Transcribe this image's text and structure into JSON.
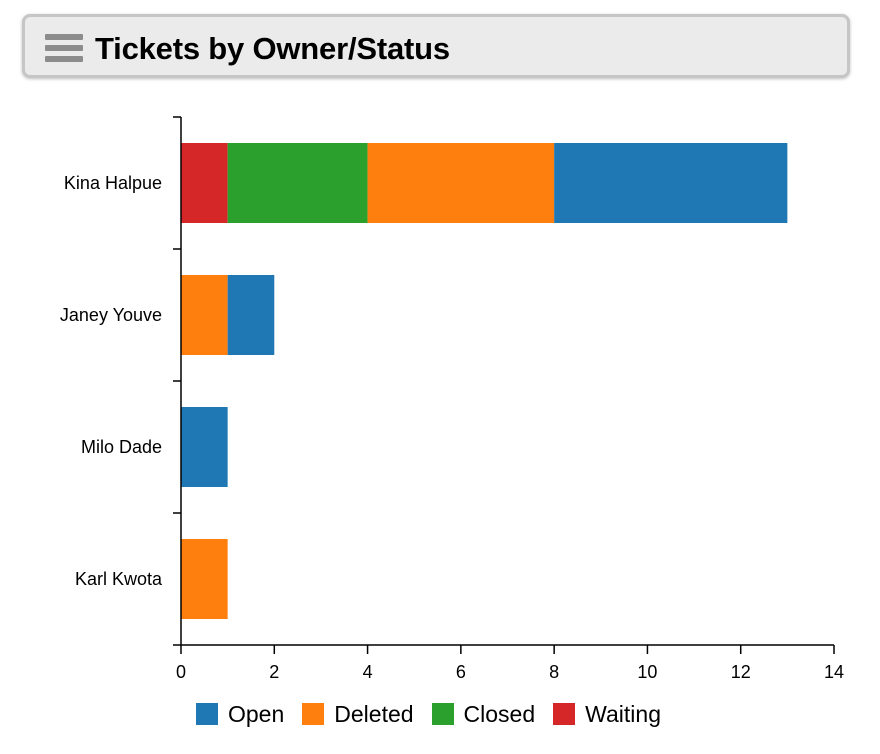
{
  "header": {
    "title": "Tickets by Owner/Status",
    "menu_icon": "hamburger-menu-icon"
  },
  "chart_data": {
    "type": "bar",
    "orientation": "horizontal",
    "stacked": true,
    "title": "Tickets by Owner/Status",
    "xlabel": "",
    "ylabel": "",
    "categories": [
      "Kina Halpue",
      "Janey Youve",
      "Milo Dade",
      "Karl Kwota"
    ],
    "series": [
      {
        "name": "Waiting",
        "color": "#d62728",
        "values": [
          1,
          0,
          0,
          0
        ]
      },
      {
        "name": "Closed",
        "color": "#2ca02c",
        "values": [
          3,
          0,
          0,
          0
        ]
      },
      {
        "name": "Deleted",
        "color": "#ff7f0e",
        "values": [
          4,
          1,
          0,
          1
        ]
      },
      {
        "name": "Open",
        "color": "#1f77b4",
        "values": [
          5,
          1,
          1,
          0
        ]
      }
    ],
    "xlim": [
      0,
      14
    ],
    "xticks": [
      "0",
      "2",
      "4",
      "6",
      "8",
      "10",
      "12",
      "14"
    ],
    "grid": false,
    "legend": {
      "placement": "bottom",
      "order": [
        "Open",
        "Deleted",
        "Closed",
        "Waiting"
      ]
    }
  }
}
